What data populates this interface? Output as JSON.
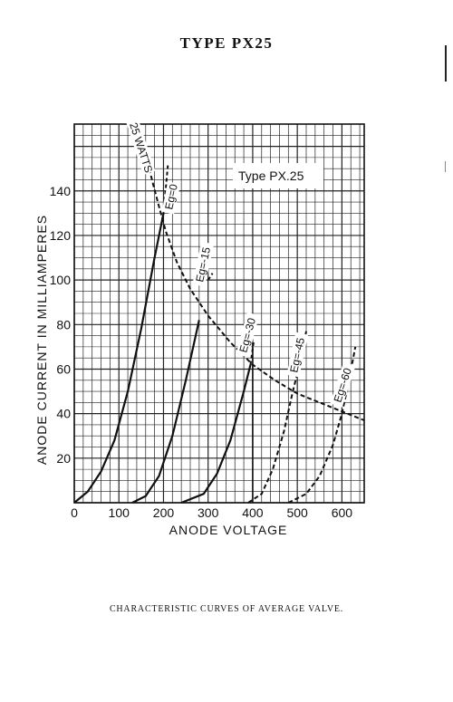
{
  "page": {
    "title": "TYPE PX25",
    "caption": "CHARACTERISTIC CURVES OF AVERAGE VALVE."
  },
  "chart_data": {
    "type": "line",
    "title": "",
    "legend_box": "Type PX.25",
    "xlabel": "ANODE VOLTAGE",
    "ylabel": "ANODE CURRENT IN MILLIAMPERES",
    "xlim": [
      0,
      650
    ],
    "ylim": [
      0,
      170
    ],
    "x_ticks": [
      0,
      100,
      200,
      300,
      400,
      500,
      600
    ],
    "y_ticks": [
      20,
      40,
      60,
      80,
      100,
      120,
      140
    ],
    "grid": true,
    "series": [
      {
        "name": "Eg=0",
        "style": "solid-then-dashed",
        "x": [
          0,
          30,
          60,
          90,
          120,
          150,
          180,
          200,
          210
        ],
        "y": [
          0,
          5,
          14,
          28,
          50,
          78,
          110,
          130,
          152
        ],
        "dashed_from": 200
      },
      {
        "name": "Eg=-15",
        "style": "solid-then-dashed",
        "x": [
          130,
          160,
          190,
          220,
          250,
          280,
          300,
          310
        ],
        "y": [
          0,
          3,
          12,
          30,
          55,
          82,
          100,
          103
        ],
        "dashed_from": 290
      },
      {
        "name": "Eg=-30",
        "style": "solid-then-dashed",
        "x": [
          240,
          290,
          320,
          350,
          380,
          395,
          402
        ],
        "y": [
          0,
          4,
          13,
          28,
          50,
          62,
          72
        ],
        "dashed_from": 395
      },
      {
        "name": "Eg=-45",
        "style": "dashed",
        "x": [
          390,
          420,
          445,
          470,
          490,
          505,
          520
        ],
        "y": [
          0,
          4,
          15,
          32,
          50,
          62,
          77
        ]
      },
      {
        "name": "Eg=-60",
        "style": "dashed",
        "x": [
          480,
          520,
          550,
          580,
          600,
          615,
          630
        ],
        "y": [
          0,
          4,
          12,
          26,
          40,
          54,
          70
        ]
      },
      {
        "name": "25 WATTS",
        "style": "dashed",
        "x": [
          168,
          178,
          190,
          205,
          230,
          260,
          300,
          350,
          400,
          450,
          500,
          550,
          600,
          650
        ],
        "y": [
          150,
          142,
          133,
          122,
          108,
          96,
          84,
          72,
          62,
          55,
          49,
          45,
          41,
          37
        ]
      }
    ],
    "labels": [
      {
        "text": "25 WATTS"
      },
      {
        "text": "Eg=0"
      },
      {
        "text": "Eg=-15"
      },
      {
        "text": "Eg=-30"
      },
      {
        "text": "Eg=-45"
      },
      {
        "text": "Eg=-60"
      }
    ]
  }
}
